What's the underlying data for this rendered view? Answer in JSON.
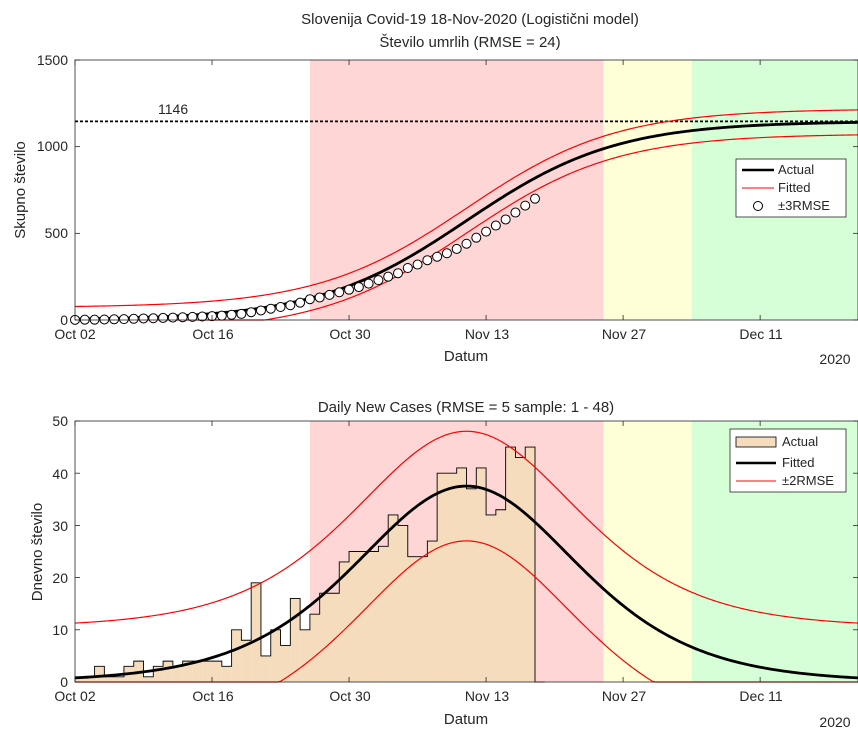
{
  "chart_data": [
    {
      "type": "line",
      "title": "Slovenija Covid-19 18-Nov-2020 (Logistični model)",
      "subtitle": "Število umrlih (RMSE = 24)",
      "xlabel": "Datum",
      "ylabel": "Skupno število",
      "year_label": "2020",
      "x_ticks": [
        "Oct 02",
        "Oct 16",
        "Oct 30",
        "Nov 13",
        "Nov 27",
        "Dec 11"
      ],
      "ylim": [
        0,
        1500
      ],
      "y_ticks": [
        "0",
        "500",
        "1000",
        "1500"
      ],
      "xlim": [
        "2020-10-02",
        "2020-12-21"
      ],
      "shaded_regions": [
        {
          "start": "2020-10-26",
          "end": "2020-11-25",
          "color": "#ffd6d6"
        },
        {
          "start": "2020-11-25",
          "end": "2020-12-04",
          "color": "#ffffd7"
        },
        {
          "start": "2020-12-04",
          "end": "2020-12-21",
          "color": "#d7ffd7"
        }
      ],
      "reference_line": {
        "value": 1146,
        "label": "1146"
      },
      "legend": {
        "placement": "right",
        "entries": [
          "Actual",
          "Fitted",
          "±3RMSE"
        ]
      },
      "series": [
        {
          "name": "Actual",
          "style": "markers",
          "color": "#000000",
          "x": [
            "2020-10-02",
            "2020-10-03",
            "2020-10-04",
            "2020-10-05",
            "2020-10-06",
            "2020-10-07",
            "2020-10-08",
            "2020-10-09",
            "2020-10-10",
            "2020-10-11",
            "2020-10-12",
            "2020-10-13",
            "2020-10-14",
            "2020-10-15",
            "2020-10-16",
            "2020-10-17",
            "2020-10-18",
            "2020-10-19",
            "2020-10-20",
            "2020-10-21",
            "2020-10-22",
            "2020-10-23",
            "2020-10-24",
            "2020-10-25",
            "2020-10-26",
            "2020-10-27",
            "2020-10-28",
            "2020-10-29",
            "2020-10-30",
            "2020-10-31",
            "2020-11-01",
            "2020-11-02",
            "2020-11-03",
            "2020-11-04",
            "2020-11-05",
            "2020-11-06",
            "2020-11-07",
            "2020-11-08",
            "2020-11-09",
            "2020-11-10",
            "2020-11-11",
            "2020-11-12",
            "2020-11-13",
            "2020-11-14",
            "2020-11-15",
            "2020-11-16",
            "2020-11-17",
            "2020-11-18"
          ],
          "values": [
            1,
            2,
            2,
            3,
            4,
            5,
            7,
            9,
            10,
            12,
            14,
            16,
            18,
            20,
            22,
            25,
            30,
            35,
            45,
            55,
            65,
            75,
            85,
            100,
            120,
            130,
            145,
            160,
            175,
            190,
            210,
            230,
            250,
            270,
            300,
            320,
            345,
            365,
            385,
            410,
            440,
            475,
            510,
            545,
            580,
            620,
            660,
            700
          ]
        },
        {
          "name": "Fitted",
          "style": "line",
          "color": "#000000",
          "model": "logistic",
          "K": 1146,
          "mid": "2020-11-11",
          "rate": 0.131
        },
        {
          "name": "Fitted",
          "style": "line",
          "color": "#ff0000",
          "model": "logistic",
          "band": "upper",
          "K": 1146,
          "mid": "2020-11-11",
          "rate": 0.131,
          "offset": 72
        },
        {
          "name": "Fitted",
          "style": "line",
          "color": "#ff0000",
          "model": "logistic",
          "band": "lower",
          "K": 1146,
          "mid": "2020-11-11",
          "rate": 0.131,
          "offset": -72
        }
      ]
    },
    {
      "type": "bar",
      "title": "Daily New Cases   (RMSE =  5 sample: 1 - 48)",
      "xlabel": "Datum",
      "ylabel": "Dnevno število",
      "year_label": "2020",
      "x_ticks": [
        "Oct 02",
        "Oct 16",
        "Oct 30",
        "Nov 13",
        "Nov 27",
        "Dec 11"
      ],
      "ylim": [
        0,
        50
      ],
      "y_ticks": [
        "0",
        "10",
        "20",
        "30",
        "40",
        "50"
      ],
      "xlim": [
        "2020-10-02",
        "2020-12-21"
      ],
      "shaded_regions": [
        {
          "start": "2020-10-26",
          "end": "2020-11-25",
          "color": "#ffd6d6"
        },
        {
          "start": "2020-11-25",
          "end": "2020-12-04",
          "color": "#ffffd7"
        },
        {
          "start": "2020-12-04",
          "end": "2020-12-21",
          "color": "#d7ffd7"
        }
      ],
      "legend": {
        "placement": "top-right",
        "entries": [
          "Actual",
          "Fitted",
          "±2RMSE"
        ]
      },
      "series": [
        {
          "name": "Actual",
          "style": "stairs",
          "fill": "#f5dcbc",
          "color": "#000000",
          "x": [
            "2020-10-02",
            "2020-10-03",
            "2020-10-04",
            "2020-10-05",
            "2020-10-06",
            "2020-10-07",
            "2020-10-08",
            "2020-10-09",
            "2020-10-10",
            "2020-10-11",
            "2020-10-12",
            "2020-10-13",
            "2020-10-14",
            "2020-10-15",
            "2020-10-16",
            "2020-10-17",
            "2020-10-18",
            "2020-10-19",
            "2020-10-20",
            "2020-10-21",
            "2020-10-22",
            "2020-10-23",
            "2020-10-24",
            "2020-10-25",
            "2020-10-26",
            "2020-10-27",
            "2020-10-28",
            "2020-10-29",
            "2020-10-30",
            "2020-10-31",
            "2020-11-01",
            "2020-11-02",
            "2020-11-03",
            "2020-11-04",
            "2020-11-05",
            "2020-11-06",
            "2020-11-07",
            "2020-11-08",
            "2020-11-09",
            "2020-11-10",
            "2020-11-11",
            "2020-11-12",
            "2020-11-13",
            "2020-11-14",
            "2020-11-15",
            "2020-11-16",
            "2020-11-17",
            "2020-11-18"
          ],
          "values": [
            1,
            1,
            3,
            1,
            1,
            3,
            4,
            1,
            3,
            4,
            3,
            4,
            4,
            4,
            4,
            3,
            10,
            8,
            19,
            5,
            10,
            7,
            16,
            10,
            13,
            17,
            17,
            23,
            25,
            25,
            25,
            26,
            32,
            30,
            24,
            24,
            27,
            40,
            40,
            41,
            37,
            41,
            32,
            33,
            45,
            43,
            45,
            0
          ]
        },
        {
          "name": "Fitted",
          "style": "line",
          "color": "#000000",
          "model": "logistic-derivative",
          "K": 1146,
          "mid": "2020-11-11",
          "rate": 0.131
        },
        {
          "name": "Fitted",
          "style": "line",
          "color": "#ff0000",
          "model": "logistic-derivative",
          "band": "upper",
          "offset": 10.5
        },
        {
          "name": "Fitted",
          "style": "line",
          "color": "#ff0000",
          "model": "logistic-derivative",
          "band": "lower",
          "offset": -10.5
        }
      ]
    }
  ]
}
